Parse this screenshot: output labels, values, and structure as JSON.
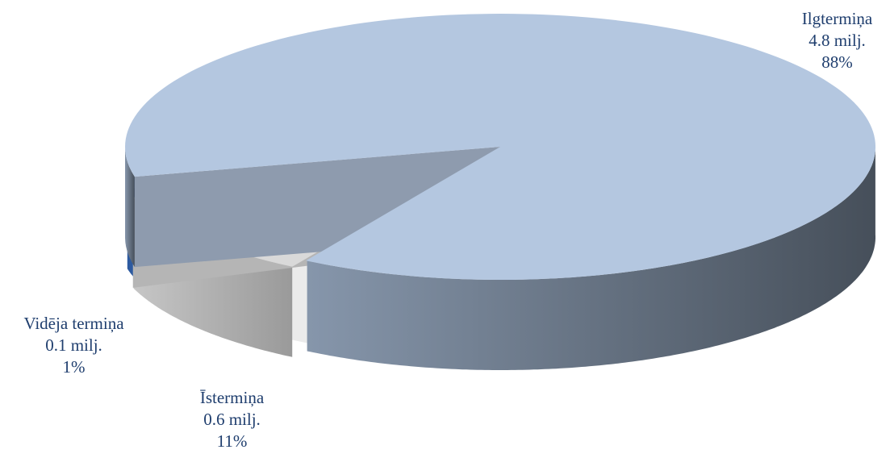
{
  "chart_data": {
    "type": "pie",
    "style": "3d-exploded",
    "title": "",
    "slices": [
      {
        "name": "Ilgtermiņa",
        "value_text": "4.8 milj.",
        "pct_text": "88%",
        "value": 4.8,
        "percent": 88,
        "colors": {
          "top": "#b4c7e0",
          "side_light": "#7e8da2",
          "side_dark": "#4a535e",
          "label": "#1f3e6e"
        }
      },
      {
        "name": "Īstermiņa",
        "value_text": "0.6 milj.",
        "pct_text": "11%",
        "value": 0.6,
        "percent": 11,
        "colors": {
          "top": "#d9d9d9",
          "side_light": "#a0a0a0",
          "side_dark": "#c9c9c9",
          "label": "#1f3e6e"
        }
      },
      {
        "name": "Vidēja termiņa",
        "value_text": "0.1 milj.",
        "pct_text": "1%",
        "value": 0.1,
        "percent": 1,
        "colors": {
          "top": "#4a7fcf",
          "side_light": "#2d5aa0",
          "side_dark": "#1e3f73",
          "label": "#1f3e6e"
        }
      }
    ],
    "legend": "none"
  }
}
